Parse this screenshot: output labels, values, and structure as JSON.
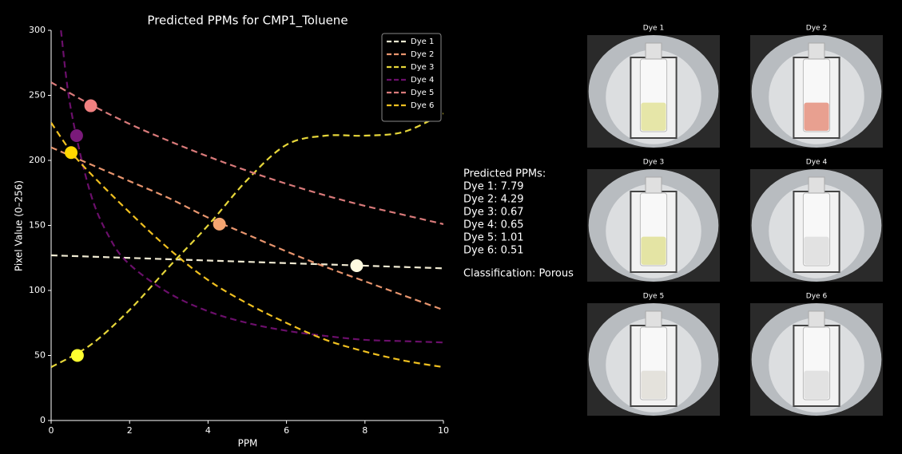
{
  "chart_data": {
    "type": "line",
    "title": "Predicted PPMs for CMP1_Toluene",
    "x_label": "PPM",
    "y_label": "Pixel Value (0–256)",
    "xlim": [
      0,
      10
    ],
    "ylim": [
      0,
      300
    ],
    "xticks": [
      0,
      2,
      4,
      6,
      8,
      10
    ],
    "yticks": [
      0,
      50,
      100,
      150,
      200,
      250,
      300
    ],
    "grid": false,
    "legend": "upper right",
    "series": [
      {
        "name": "Dye 1",
        "color": "#f0ead2",
        "marker_color": "#fffbe0",
        "x": [
          0,
          1,
          2,
          3,
          4,
          5,
          6,
          7,
          8,
          9,
          10
        ],
        "values": [
          127,
          126,
          125,
          124,
          123,
          122,
          121,
          120,
          119,
          118,
          117
        ],
        "predicted_x": 7.79,
        "predicted_y": 119
      },
      {
        "name": "Dye 2",
        "color": "#e8956e",
        "marker_color": "#f4a470",
        "x": [
          0,
          1,
          2,
          3,
          4,
          5,
          6,
          7,
          8,
          9,
          10
        ],
        "values": [
          210,
          197,
          184,
          171,
          156,
          143,
          130,
          118,
          107,
          96,
          85
        ],
        "predicted_x": 4.29,
        "predicted_y": 151
      },
      {
        "name": "Dye 3",
        "color": "#e6d63a",
        "marker_color": "#ffff30",
        "x": [
          0,
          1,
          2,
          3,
          4,
          5,
          6,
          7,
          8,
          9,
          10
        ],
        "values": [
          41,
          58,
          85,
          118,
          150,
          185,
          212,
          219,
          219,
          222,
          236
        ],
        "predicted_x": 0.67,
        "predicted_y": 50
      },
      {
        "name": "Dye 4",
        "color": "#6b0f6b",
        "marker_color": "#7a1a7a",
        "x": [
          0.25,
          0.5,
          1,
          1.5,
          2,
          3,
          4,
          5,
          6,
          7,
          8,
          9,
          10
        ],
        "values": [
          300,
          240,
          175,
          140,
          120,
          98,
          84,
          75,
          69,
          65,
          62,
          61,
          60
        ],
        "predicted_x": 0.65,
        "predicted_y": 219
      },
      {
        "name": "Dye 5",
        "color": "#d97a7a",
        "marker_color": "#f08080",
        "x": [
          0,
          1,
          2,
          3,
          4,
          5,
          6,
          7,
          8,
          9,
          10
        ],
        "values": [
          260,
          243,
          228,
          215,
          203,
          192,
          182,
          173,
          165,
          158,
          151
        ],
        "predicted_x": 1.01,
        "predicted_y": 242
      },
      {
        "name": "Dye 6",
        "color": "#f0c020",
        "marker_color": "#ffd700",
        "x": [
          0,
          0.5,
          1,
          2,
          3,
          4,
          5,
          6,
          7,
          8,
          9,
          10
        ],
        "values": [
          229,
          207,
          190,
          160,
          132,
          108,
          90,
          75,
          62,
          53,
          46,
          41
        ],
        "predicted_x": 0.51,
        "predicted_y": 206
      }
    ]
  },
  "panel": {
    "heading": "Predicted PPMs:",
    "lines": [
      "Dye 1: 7.79",
      "Dye 2: 4.29",
      "Dye 3: 0.67",
      "Dye 4: 0.65",
      "Dye 5: 1.01",
      "Dye 6: 0.51"
    ],
    "classification": "Classification: Porous"
  },
  "images": [
    {
      "title": "Dye 1",
      "tint": "#e6e6a8"
    },
    {
      "title": "Dye 2",
      "tint": "#e8a090"
    },
    {
      "title": "Dye 3",
      "tint": "#e4e4a4"
    },
    {
      "title": "Dye 4",
      "tint": "#e2e2e2"
    },
    {
      "title": "Dye 5",
      "tint": "#e4e2dc"
    },
    {
      "title": "Dye 6",
      "tint": "#e2e2e2"
    }
  ]
}
